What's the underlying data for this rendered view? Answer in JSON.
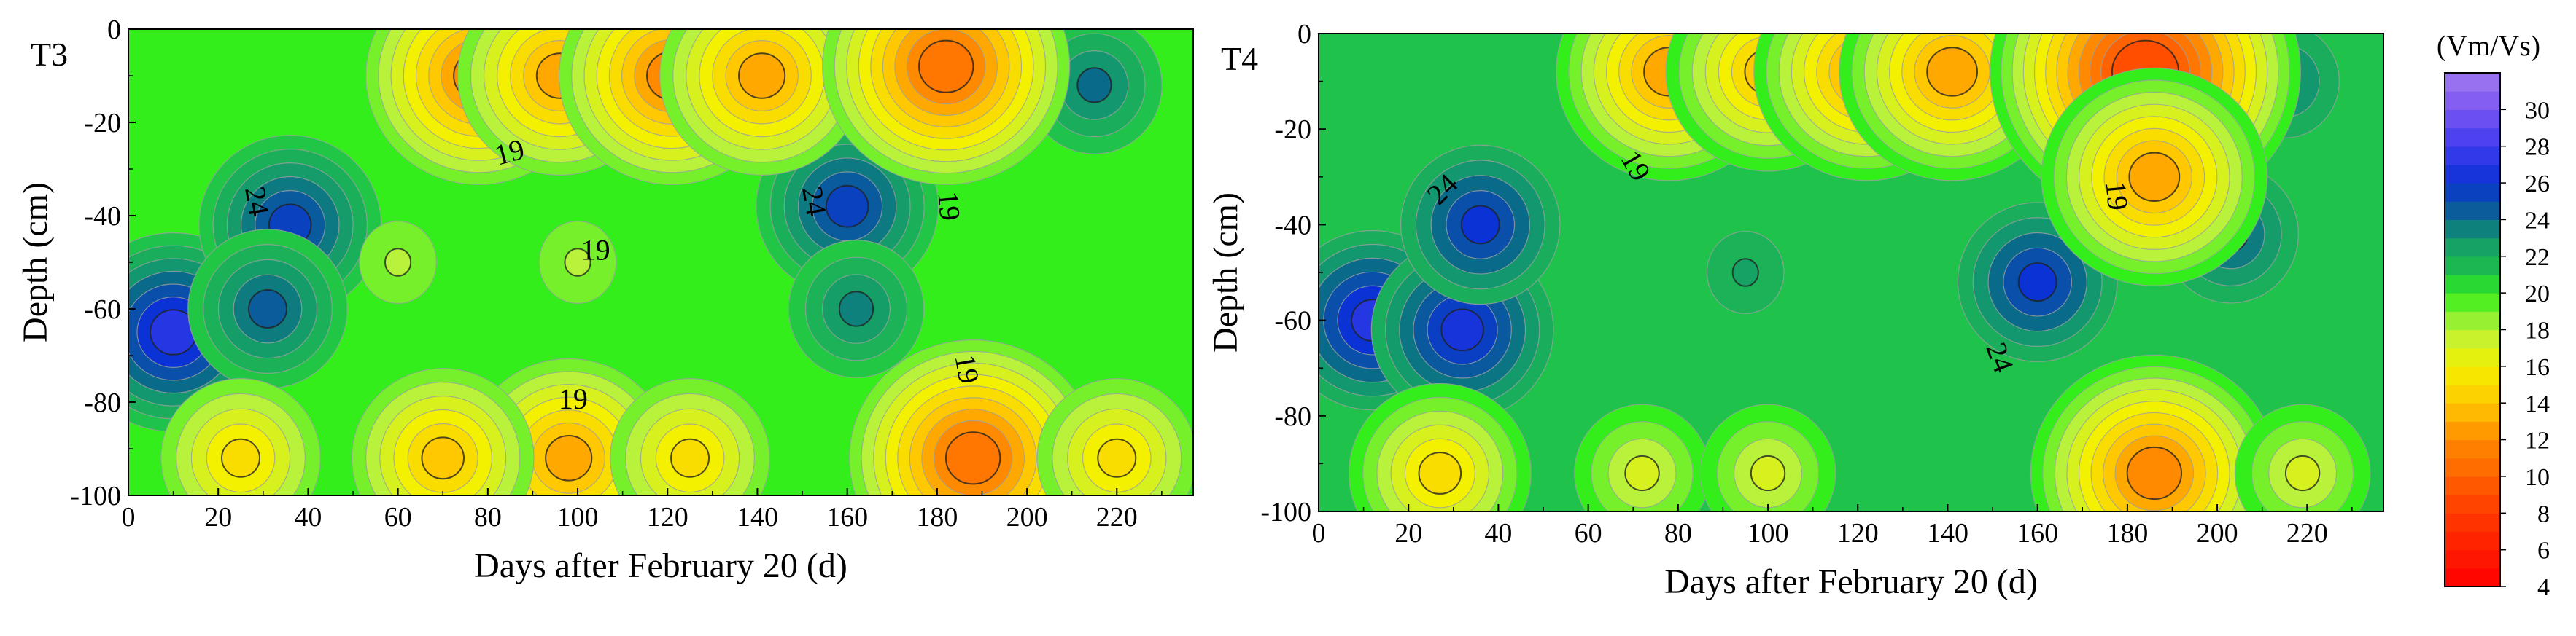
{
  "chart_data": [
    {
      "type": "heatmap",
      "panel_label": "T3",
      "xlabel": "Days after February 20 (d)",
      "ylabel": "Depth (cm)",
      "xlim": [
        0,
        237
      ],
      "ylim": [
        -100,
        0
      ],
      "xticks": [
        0,
        20,
        40,
        60,
        80,
        100,
        120,
        140,
        160,
        180,
        200,
        220
      ],
      "yticks": [
        0,
        -20,
        -40,
        -60,
        -80,
        -100
      ],
      "base_value": 20,
      "features": [
        {
          "x": 10,
          "y": -65,
          "value": 27
        },
        {
          "x": 36,
          "y": -42,
          "value": 25.5
        },
        {
          "x": 31,
          "y": -60,
          "value": 24.5
        },
        {
          "x": 160,
          "y": -38,
          "value": 25.5
        },
        {
          "x": 162,
          "y": -60,
          "value": 23.5
        },
        {
          "x": 215,
          "y": -12,
          "value": 24
        },
        {
          "x": 78,
          "y": -10,
          "value": 12
        },
        {
          "x": 96,
          "y": -10,
          "value": 13
        },
        {
          "x": 121,
          "y": -10,
          "value": 12
        },
        {
          "x": 141,
          "y": -10,
          "value": 13
        },
        {
          "x": 182,
          "y": -8,
          "value": 11
        },
        {
          "x": 188,
          "y": -92,
          "value": 11
        },
        {
          "x": 98,
          "y": -92,
          "value": 13
        },
        {
          "x": 70,
          "y": -92,
          "value": 14
        },
        {
          "x": 125,
          "y": -92,
          "value": 15
        },
        {
          "x": 25,
          "y": -92,
          "value": 15
        },
        {
          "x": 220,
          "y": -92,
          "value": 15
        },
        {
          "x": 100,
          "y": -50,
          "value": 18
        },
        {
          "x": 60,
          "y": -50,
          "value": 18
        }
      ],
      "contour_labels": [
        {
          "text": "19",
          "x": 85,
          "y": -27,
          "angle": -15
        },
        {
          "text": "24",
          "x": 28,
          "y": -37,
          "angle": 80
        },
        {
          "text": "19",
          "x": 104,
          "y": -48,
          "angle": 0
        },
        {
          "text": "24",
          "x": 152,
          "y": -37,
          "angle": 80
        },
        {
          "text": "19",
          "x": 182,
          "y": -38,
          "angle": 85
        },
        {
          "text": "19",
          "x": 186,
          "y": -73,
          "angle": 80
        },
        {
          "text": "19",
          "x": 99,
          "y": -80,
          "angle": 0
        }
      ]
    },
    {
      "type": "heatmap",
      "panel_label": "T4",
      "xlabel": "Days after February 20 (d)",
      "ylabel": "Depth (cm)",
      "xlim": [
        0,
        237
      ],
      "ylim": [
        -100,
        0
      ],
      "xticks": [
        0,
        20,
        40,
        60,
        80,
        100,
        120,
        140,
        160,
        180,
        200,
        220
      ],
      "yticks": [
        0,
        -20,
        -40,
        -60,
        -80,
        -100
      ],
      "base_value": 21,
      "features": [
        {
          "x": 12,
          "y": -60,
          "value": 27
        },
        {
          "x": 32,
          "y": -62,
          "value": 26.5
        },
        {
          "x": 36,
          "y": -40,
          "value": 26
        },
        {
          "x": 160,
          "y": -52,
          "value": 26
        },
        {
          "x": 203,
          "y": -42,
          "value": 24.5
        },
        {
          "x": 215,
          "y": -10,
          "value": 24
        },
        {
          "x": 95,
          "y": -50,
          "value": 22.5
        },
        {
          "x": 78,
          "y": -8,
          "value": 13
        },
        {
          "x": 100,
          "y": -8,
          "value": 14
        },
        {
          "x": 122,
          "y": -8,
          "value": 13
        },
        {
          "x": 141,
          "y": -8,
          "value": 13
        },
        {
          "x": 184,
          "y": -8,
          "value": 9
        },
        {
          "x": 186,
          "y": -30,
          "value": 13
        },
        {
          "x": 186,
          "y": -92,
          "value": 12
        },
        {
          "x": 27,
          "y": -92,
          "value": 15
        },
        {
          "x": 72,
          "y": -92,
          "value": 17
        },
        {
          "x": 100,
          "y": -92,
          "value": 17
        },
        {
          "x": 219,
          "y": -92,
          "value": 17
        }
      ],
      "contour_labels": [
        {
          "text": "19",
          "x": 70,
          "y": -28,
          "angle": 60
        },
        {
          "text": "24",
          "x": 28,
          "y": -33,
          "angle": -45
        },
        {
          "text": "19",
          "x": 177,
          "y": -34,
          "angle": 85
        },
        {
          "text": "24",
          "x": 151,
          "y": -68,
          "angle": 70
        }
      ]
    }
  ],
  "colorbar": {
    "title": "(Vm/Vs)",
    "range": [
      4,
      32
    ],
    "labels": [
      30,
      28,
      26,
      24,
      22,
      20,
      18,
      16,
      14,
      12,
      10,
      8,
      6,
      4
    ],
    "colors": [
      {
        "v": 4,
        "c": "#ff0000"
      },
      {
        "v": 8,
        "c": "#ff3a00"
      },
      {
        "v": 12,
        "c": "#ff8a00"
      },
      {
        "v": 14,
        "c": "#ffc800"
      },
      {
        "v": 16,
        "c": "#f3f000"
      },
      {
        "v": 18,
        "c": "#b8f23a"
      },
      {
        "v": 20,
        "c": "#33ee1a"
      },
      {
        "v": 21,
        "c": "#1fc24a"
      },
      {
        "v": 23,
        "c": "#13976e"
      },
      {
        "v": 24,
        "c": "#0a6a8a"
      },
      {
        "v": 25,
        "c": "#0a50aa"
      },
      {
        "v": 26,
        "c": "#0a32d4"
      },
      {
        "v": 28,
        "c": "#3f3bf0"
      },
      {
        "v": 30,
        "c": "#7a55f0"
      },
      {
        "v": 32,
        "c": "#a07aee"
      }
    ]
  }
}
